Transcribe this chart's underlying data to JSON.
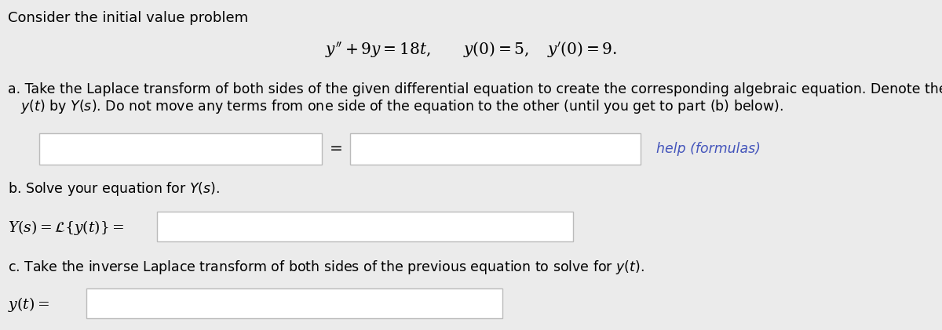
{
  "background_color": "#ebebeb",
  "text_color": "#000000",
  "link_color": "#4455bb",
  "title_text": "Consider the initial value problem",
  "equation_main": "$y'' + 9y = 18t, \\quad\\quad y(0) = 5, \\quad y'(0) = 9.$",
  "part_a_line1": "a. Take the Laplace transform of both sides of the given differential equation to create the corresponding algebraic equation. Denote the Laplace transform of",
  "part_a_line2": "   $y(t)$ by $Y(s)$. Do not move any terms from one side of the equation to the other (until you get to part (b) below).",
  "part_b_text": "b. Solve your equation for $Y(s)$.",
  "part_b_label": "$Y(s) = \\mathcal{L}\\{y(t)\\} =$",
  "part_c_text": "c. Take the inverse Laplace transform of both sides of the previous equation to solve for $y(t)$.",
  "part_c_label": "$y(t) =$",
  "help_text": "help (formulas)"
}
